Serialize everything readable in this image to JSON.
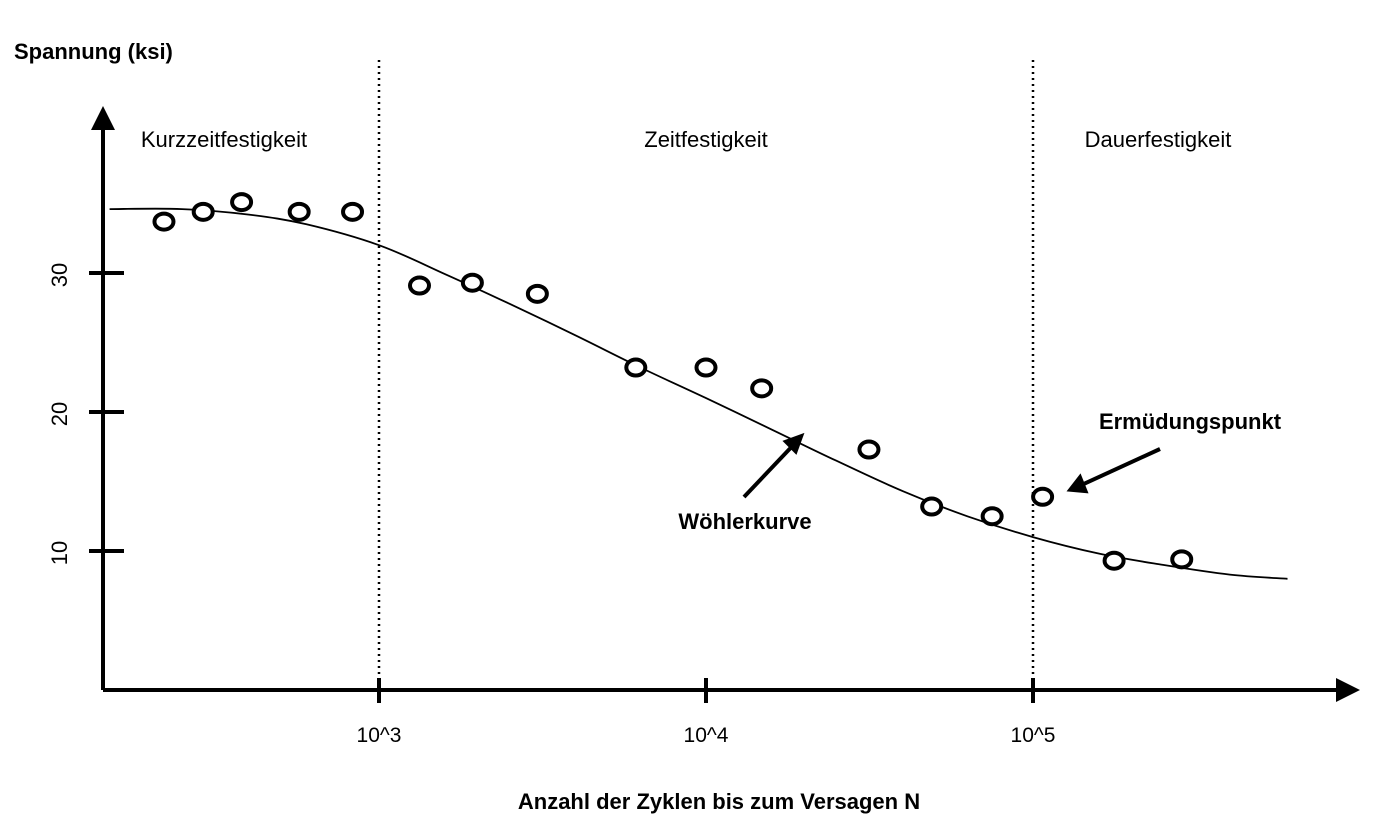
{
  "chart_data": {
    "type": "scatter",
    "ylabel": "Spannung (ksi)",
    "xlabel": "Anzahl der Zyklen bis zum Versagen N",
    "x_scale": "log",
    "xlim": [
      150,
      700000
    ],
    "ylim": [
      0,
      40
    ],
    "x_ticks": [
      {
        "value": 1000,
        "label": "10^3"
      },
      {
        "value": 10000,
        "label": "10^4"
      },
      {
        "value": 100000,
        "label": "10^5"
      }
    ],
    "y_ticks": [
      {
        "value": 10,
        "label": "10"
      },
      {
        "value": 20,
        "label": "20"
      },
      {
        "value": 30,
        "label": "30"
      }
    ],
    "regions": [
      {
        "label": "Kurzzeitfestigkeit",
        "from": 150,
        "to": 1000
      },
      {
        "label": "Zeitfestigkeit",
        "from": 1000,
        "to": 100000
      },
      {
        "label": "Dauerfestigkeit",
        "from": 100000,
        "to": 700000
      }
    ],
    "boundaries": [
      1000,
      100000
    ],
    "points": [
      {
        "x": 220,
        "y": 33.7
      },
      {
        "x": 290,
        "y": 34.4
      },
      {
        "x": 380,
        "y": 35.1
      },
      {
        "x": 570,
        "y": 34.4
      },
      {
        "x": 830,
        "y": 34.4
      },
      {
        "x": 1330,
        "y": 29.1
      },
      {
        "x": 1930,
        "y": 29.3
      },
      {
        "x": 3050,
        "y": 28.5
      },
      {
        "x": 6100,
        "y": 23.2
      },
      {
        "x": 10000,
        "y": 23.2
      },
      {
        "x": 14800,
        "y": 21.7
      },
      {
        "x": 31500,
        "y": 17.3
      },
      {
        "x": 49000,
        "y": 13.2
      },
      {
        "x": 75000,
        "y": 12.5
      },
      {
        "x": 107000,
        "y": 13.9
      },
      {
        "x": 177000,
        "y": 9.3
      },
      {
        "x": 285000,
        "y": 9.4
      }
    ],
    "curve": {
      "label": "Wöhlerkurve",
      "points": [
        {
          "x": 150,
          "y": 34.6
        },
        {
          "x": 250,
          "y": 34.6
        },
        {
          "x": 400,
          "y": 34.2
        },
        {
          "x": 600,
          "y": 33.5
        },
        {
          "x": 1000,
          "y": 32.0
        },
        {
          "x": 1600,
          "y": 29.9
        },
        {
          "x": 2500,
          "y": 27.8
        },
        {
          "x": 4000,
          "y": 25.5
        },
        {
          "x": 6300,
          "y": 23.2
        },
        {
          "x": 10000,
          "y": 21.0
        },
        {
          "x": 16000,
          "y": 18.7
        },
        {
          "x": 25000,
          "y": 16.5
        },
        {
          "x": 40000,
          "y": 14.3
        },
        {
          "x": 63000,
          "y": 12.5
        },
        {
          "x": 100000,
          "y": 11.0
        },
        {
          "x": 160000,
          "y": 9.8
        },
        {
          "x": 250000,
          "y": 9.0
        },
        {
          "x": 400000,
          "y": 8.3
        },
        {
          "x": 600000,
          "y": 8.0
        }
      ]
    },
    "annotations": [
      {
        "text": "Wöhlerkurve",
        "arrow_to": {
          "x": 20000,
          "y": 18.5
        }
      },
      {
        "text": "Ermüdungspunkt",
        "arrow_to": {
          "x": 110000,
          "y": 14.0
        }
      }
    ]
  }
}
